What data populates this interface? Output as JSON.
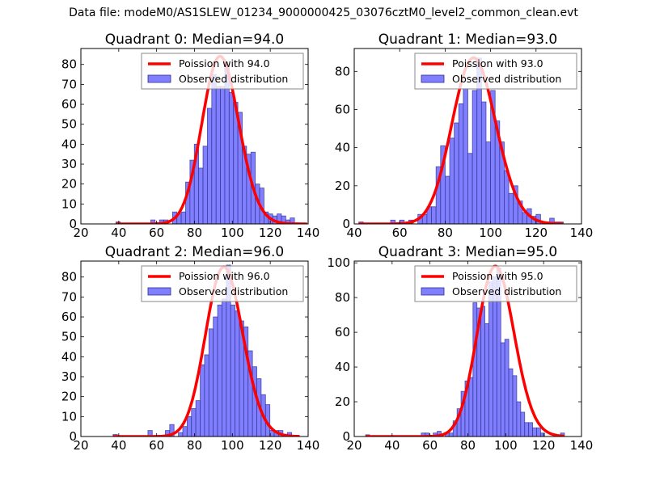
{
  "suptitle": "Data file: modeM0/AS1SLEW_01234_9000000425_03076cztM0_level2_common_clean.evt",
  "colors": {
    "bar_fill": "#7f7fff",
    "bar_edge": "#2f2f8f",
    "curve": "#ff0000",
    "axes": "#000000"
  },
  "chart_data": [
    {
      "type": "bar",
      "title": "Quadrant 0: Median=94.0",
      "legend": [
        "Poission with 94.0",
        "Observed distribution"
      ],
      "legend_position": "top-right",
      "xlim": [
        20,
        140
      ],
      "ylim": [
        0,
        88
      ],
      "xticks": [
        20,
        40,
        60,
        80,
        100,
        120,
        140
      ],
      "yticks": [
        0,
        10,
        20,
        30,
        40,
        50,
        60,
        70,
        80
      ],
      "bin_start": 38.5,
      "bin_width": 2.3,
      "values": [
        1,
        0,
        0,
        0,
        0,
        0,
        0,
        0,
        2,
        0,
        2,
        2,
        0,
        6,
        5,
        6,
        21,
        32,
        40,
        28,
        39,
        58,
        75,
        69,
        69,
        80,
        66,
        61,
        56,
        39,
        35,
        36,
        20,
        18,
        6,
        5,
        4,
        5,
        4,
        2,
        3,
        0,
        0,
        0
      ],
      "poisson_mean": 94.0,
      "poisson_scale": 84
    },
    {
      "type": "bar",
      "title": "Quadrant 1: Median=93.0",
      "legend": [
        "Poission with 93.0",
        "Observed distribution"
      ],
      "legend_position": "top-right",
      "xlim": [
        40,
        140
      ],
      "ylim": [
        0,
        92
      ],
      "xticks": [
        40,
        60,
        80,
        100,
        120,
        140
      ],
      "yticks": [
        0,
        20,
        40,
        60,
        80
      ],
      "bin_start": 42,
      "bin_width": 2.0,
      "values": [
        1,
        0,
        0,
        0,
        0,
        0,
        0,
        2,
        0,
        2,
        0,
        2,
        0,
        5,
        5,
        9,
        9,
        30,
        41,
        25,
        45,
        53,
        63,
        71,
        37,
        70,
        87,
        64,
        43,
        70,
        54,
        43,
        28,
        16,
        20,
        12,
        6,
        8,
        4,
        5,
        1,
        1,
        3,
        1,
        1
      ],
      "poisson_mean": 93.0,
      "poisson_scale": 87
    },
    {
      "type": "bar",
      "title": "Quadrant 2: Median=96.0",
      "legend": [
        "Poission with 96.0",
        "Observed distribution"
      ],
      "legend_position": "top-right",
      "xlim": [
        20,
        140
      ],
      "ylim": [
        0,
        88
      ],
      "xticks": [
        20,
        40,
        60,
        80,
        100,
        120,
        140
      ],
      "yticks": [
        0,
        10,
        20,
        30,
        40,
        50,
        60,
        70,
        80
      ],
      "bin_start": 37,
      "bin_width": 2.3,
      "values": [
        1,
        0,
        0,
        0,
        0,
        0,
        0,
        0,
        3,
        0,
        0,
        0,
        3,
        6,
        0,
        2,
        5,
        10,
        14,
        18,
        36,
        41,
        54,
        60,
        66,
        69,
        86,
        66,
        63,
        58,
        55,
        43,
        35,
        29,
        21,
        16,
        3,
        3,
        3,
        0,
        2,
        0,
        0
      ],
      "poisson_mean": 96.0,
      "poisson_scale": 85
    },
    {
      "type": "bar",
      "title": "Quadrant 3: Median=95.0",
      "legend": [
        "Poission with 95.0",
        "Observed distribution"
      ],
      "legend_position": "top-right",
      "xlim": [
        20,
        140
      ],
      "ylim": [
        0,
        101
      ],
      "xticks": [
        20,
        40,
        60,
        80,
        100,
        120,
        140
      ],
      "yticks": [
        0,
        20,
        40,
        60,
        80,
        100
      ],
      "bin_start": 26,
      "bin_width": 2.1,
      "values": [
        1,
        0,
        0,
        0,
        0,
        0,
        0,
        0,
        0,
        0,
        0,
        0,
        0,
        0,
        2,
        2,
        0,
        2,
        3,
        0,
        2,
        2,
        9,
        16,
        26,
        32,
        34,
        77,
        74,
        75,
        65,
        89,
        92,
        97,
        54,
        56,
        39,
        35,
        20,
        14,
        8,
        8,
        5,
        5,
        2,
        0,
        0,
        0,
        1,
        2
      ],
      "poisson_mean": 95.0,
      "poisson_scale": 98
    }
  ]
}
